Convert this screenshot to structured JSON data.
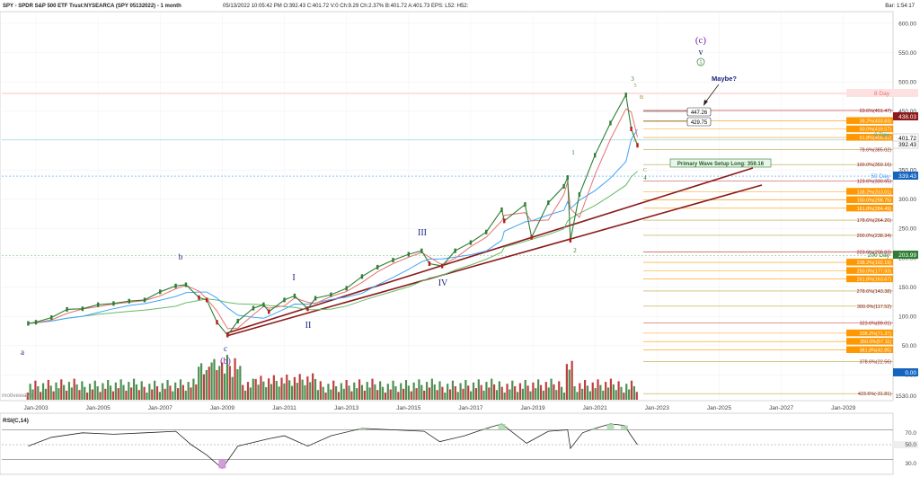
{
  "header": {
    "symbol_title": "SPY - SPDR S&P 500 ETF Trust:NYSEARCA (SPY 05132022) - 1 month",
    "stats": "05/13/2022 10:05:42 PM  O:392.43  C:401.72  V:0  Ch:9.29  Ch:2.37%  B:401.72  A:401.73  EPS:  L52:  H52:",
    "bar_info": "Bar: 1:54:17"
  },
  "watermark": "motivewave",
  "annotations": {
    "maybe": "Maybe?",
    "primary_setup": "Primary Wave Setup Long: 359.16",
    "box_upper": "447.26",
    "box_lower": "429.75",
    "ma8_tag": "8 Day",
    "ma50_tag": "50 Day",
    "ma200_tag": "200 Day",
    "ma8_value": "401.72",
    "ma50_value": "339.43",
    "ma200_value": "203.99",
    "last_price": "392.43",
    "high_tag": "438.03",
    "volume_value": "0.00",
    "vol_scale": "1530.00"
  },
  "rsi_panel": {
    "label": "RSI(C,14)",
    "levels": [
      "70.0",
      "50.0",
      "30.0"
    ]
  },
  "colors": {
    "price_up": "#2e7d32",
    "price_down": "#b71c1c",
    "ma8": "#e57373",
    "ma50": "#42a5f5",
    "ma200": "#66bb6a",
    "trend": "#8b1a1a",
    "fib_orange": "#ff9800",
    "fib_olive": "#b5a642",
    "wave_purple": "#7b1fa2",
    "wave_blue": "#1a237e",
    "wave_green": "#2e7d32",
    "wave_olive": "#9e8a2e"
  },
  "chart_data": {
    "type": "line",
    "title": "SPY - SPDR S&P 500 ETF Trust:NYSEARCA (SPY 05132022) - 1 month",
    "x_ticks": [
      "Jan-2003",
      "Jan-2005",
      "Jan-2007",
      "Jan-2009",
      "Jan-2011",
      "Jan-2013",
      "Jan-2015",
      "Jan-2017",
      "Jan-2019",
      "Jan-2021",
      "Jan-2023",
      "Jan-2025",
      "Jan-2027",
      "Jan-2029"
    ],
    "y_ticks": [
      600,
      550,
      500,
      450,
      400,
      350,
      300,
      250,
      200,
      150,
      100,
      50,
      0
    ],
    "y_tick_labels": [
      "600.00",
      "550.00",
      "500.00",
      "450.00",
      "400.00",
      "350.00",
      "300.00",
      "250.00",
      "200.00",
      "150.00",
      "100.00",
      "50.00",
      "0.00"
    ],
    "ylim": [
      0,
      620
    ],
    "grid": true,
    "series": [
      {
        "name": "SPY",
        "x": [
          2002.75,
          2003.0,
          2003.5,
          2004.0,
          2004.5,
          2005.0,
          2005.5,
          2006.0,
          2006.5,
          2007.0,
          2007.5,
          2007.83,
          2008.25,
          2008.5,
          2008.83,
          2009.17,
          2009.5,
          2010.0,
          2010.33,
          2010.5,
          2011.0,
          2011.33,
          2011.75,
          2012.0,
          2012.5,
          2013.0,
          2013.5,
          2014.0,
          2014.5,
          2015.0,
          2015.42,
          2015.67,
          2016.08,
          2016.5,
          2017.0,
          2017.5,
          2018.0,
          2018.08,
          2018.75,
          2018.96,
          2019.5,
          2020.0,
          2020.12,
          2020.21,
          2020.5,
          2021.0,
          2021.5,
          2022.0,
          2022.17,
          2022.37
        ],
        "values": [
          88,
          90,
          98,
          112,
          113,
          120,
          122,
          126,
          128,
          142,
          152,
          154,
          132,
          128,
          90,
          68,
          92,
          114,
          120,
          108,
          128,
          135,
          113,
          131,
          137,
          148,
          168,
          184,
          196,
          206,
          212,
          190,
          186,
          212,
          226,
          244,
          282,
          263,
          291,
          235,
          294,
          322,
          337,
          230,
          308,
          375,
          430,
          478,
          420,
          392
        ]
      }
    ],
    "wave_labels": [
      "(c)",
      "v",
      "5",
      "a",
      "b",
      "c",
      "(b)",
      "I",
      "II",
      "III",
      "IV",
      "1",
      "2",
      "3",
      "4",
      "5",
      "A",
      "B",
      "C"
    ],
    "fib_levels": [
      {
        "label": "23.6%(451.47)",
        "value": 451.47
      },
      {
        "label": "38.2%(433.83)",
        "value": 433.83
      },
      {
        "label": "50.0%(419.57)",
        "value": 419.57
      },
      {
        "label": "61.8%(405.31)",
        "value": 405.31
      },
      {
        "label": "78.6%(385.02)",
        "value": 385.02
      },
      {
        "label": "100.0%(359.16)",
        "value": 359.16
      },
      {
        "label": "123.6%(330.65)",
        "value": 330.65
      },
      {
        "label": "138.2%(313.01)",
        "value": 313.01
      },
      {
        "label": "150.0%(298.75)",
        "value": 298.75
      },
      {
        "label": "161.8%(284.49)",
        "value": 284.49
      },
      {
        "label": "178.6%(264.20)",
        "value": 264.2
      },
      {
        "label": "200.0%(238.34)",
        "value": 238.34
      },
      {
        "label": "223.6%(209.83)",
        "value": 209.83
      },
      {
        "label": "238.2%(192.19)",
        "value": 192.19
      },
      {
        "label": "250.0%(177.93)",
        "value": 177.93
      },
      {
        "label": "261.8%(163.67)",
        "value": 163.67
      },
      {
        "label": "278.6%(143.38)",
        "value": 143.38
      },
      {
        "label": "300.0%(117.52)",
        "value": 117.52
      },
      {
        "label": "323.6%(89.01)",
        "value": 89.01
      },
      {
        "label": "338.2%(71.37)",
        "value": 71.37
      },
      {
        "label": "350.0%(57.11)",
        "value": 57.11
      },
      {
        "label": "361.8%(42.85)",
        "value": 42.85
      },
      {
        "label": "378.6%(22.56)",
        "value": 22.56
      },
      {
        "label": "423.6%(-31.81)",
        "value": -31.81
      }
    ],
    "rsi": {
      "x": [
        2002.75,
        2003.5,
        2004.5,
        2005.5,
        2006.5,
        2007.5,
        2008.0,
        2008.5,
        2009.0,
        2009.5,
        2010.5,
        2011.0,
        2011.75,
        2012.5,
        2013.5,
        2014.5,
        2015.5,
        2016.0,
        2016.8,
        2017.5,
        2018.0,
        2018.8,
        2019.5,
        2020.12,
        2020.21,
        2020.6,
        2021.0,
        2021.5,
        2021.95,
        2022.17,
        2022.37
      ],
      "values": [
        48,
        60,
        66,
        64,
        66,
        68,
        50,
        36,
        18,
        48,
        58,
        62,
        48,
        62,
        72,
        70,
        68,
        54,
        62,
        72,
        78,
        52,
        68,
        70,
        45,
        66,
        72,
        78,
        76,
        62,
        50
      ]
    }
  }
}
